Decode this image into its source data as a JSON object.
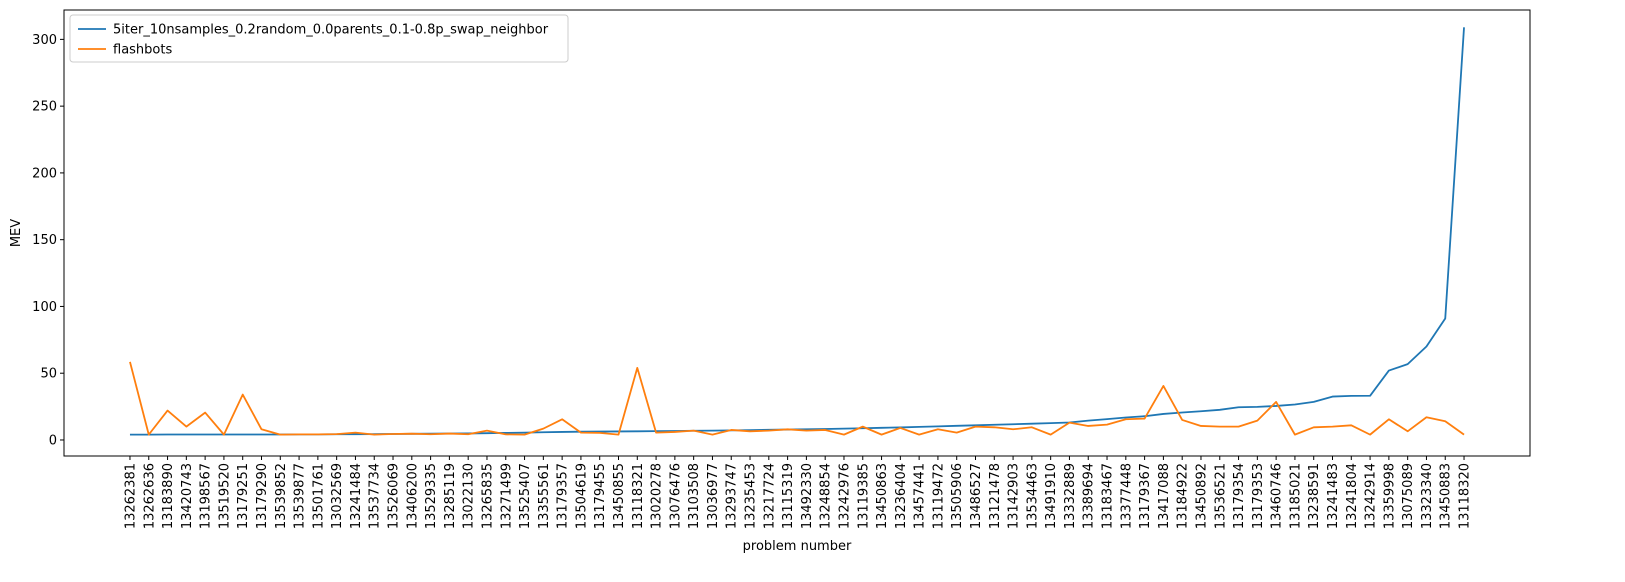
{
  "chart_data": {
    "type": "line",
    "xlabel": "problem number",
    "ylabel": "MEV",
    "ylim": [
      -12,
      322
    ],
    "yticks": [
      0,
      50,
      100,
      150,
      200,
      250,
      300
    ],
    "legend_position": "top-left",
    "categories": [
      "13262381",
      "13262636",
      "13183890",
      "13420743",
      "13198567",
      "13519520",
      "13179251",
      "13179290",
      "13539852",
      "13539877",
      "13501761",
      "13032569",
      "13241484",
      "13537734",
      "13526069",
      "13406200",
      "13529335",
      "13285119",
      "13022130",
      "13265835",
      "13271499",
      "13525407",
      "13355561",
      "13179357",
      "13504619",
      "13179455",
      "13450855",
      "13118321",
      "13020278",
      "13076476",
      "13103508",
      "13036977",
      "13293747",
      "13235453",
      "13217724",
      "13115319",
      "13492330",
      "13248854",
      "13242976",
      "13119385",
      "13450863",
      "13236404",
      "13457441",
      "13119472",
      "13505906",
      "13486527",
      "13121478",
      "13142903",
      "13534463",
      "13491910",
      "13332889",
      "13389694",
      "13183467",
      "13377448",
      "13179367",
      "13417088",
      "13184922",
      "13450892",
      "13536521",
      "13179354",
      "13179353",
      "13460746",
      "13185021",
      "13238591",
      "13241483",
      "13241804",
      "13242914",
      "13359998",
      "13075089",
      "13323340",
      "13450883",
      "13118320"
    ],
    "series": [
      {
        "name": "5iter_10nsamples_0.2random_0.0parents_0.1-0.8p_swap_neighbor",
        "color": "#1f77b4",
        "values": [
          4.0,
          4.0,
          4.1,
          4.1,
          4.1,
          4.1,
          4.1,
          4.1,
          4.1,
          4.2,
          4.2,
          4.3,
          4.3,
          4.4,
          4.5,
          4.6,
          4.7,
          4.8,
          4.9,
          5.1,
          5.3,
          5.5,
          5.8,
          6.0,
          6.2,
          6.3,
          6.4,
          6.5,
          6.6,
          6.7,
          6.9,
          7.0,
          7.2,
          7.4,
          7.6,
          7.8,
          8.0,
          8.2,
          8.5,
          8.8,
          9.1,
          9.4,
          9.8,
          10.2,
          10.6,
          11.0,
          11.4,
          11.8,
          12.2,
          12.6,
          13.1,
          14.5,
          15.6,
          16.8,
          17.8,
          19.5,
          20.6,
          21.5,
          22.6,
          24.5,
          24.8,
          25.5,
          26.6,
          28.5,
          32.5,
          33.0,
          33.1,
          52.0,
          56.8,
          70.0,
          91.0,
          309.0
        ]
      },
      {
        "name": "flashbots",
        "color": "#ff7f0e",
        "values": [
          58.5,
          4.0,
          22.0,
          10.0,
          20.5,
          4.0,
          34.0,
          8.0,
          4.0,
          4.2,
          4.2,
          4.4,
          5.5,
          4.0,
          4.5,
          4.7,
          4.3,
          4.8,
          4.3,
          7.0,
          4.2,
          4.0,
          8.5,
          15.5,
          5.5,
          5.3,
          4.0,
          54.0,
          5.5,
          6.0,
          7.0,
          4.0,
          7.5,
          6.5,
          7.0,
          8.0,
          7.0,
          7.5,
          4.0,
          10.0,
          4.0,
          9.0,
          4.0,
          8.0,
          5.5,
          10.0,
          9.5,
          8.0,
          9.5,
          4.0,
          13.0,
          10.5,
          11.5,
          15.5,
          16.0,
          40.5,
          15.0,
          10.5,
          10.0,
          10.0,
          14.5,
          28.5,
          4.0,
          9.5,
          10.0,
          11.0,
          4.0,
          15.5,
          6.5,
          17.0,
          14.0,
          4.0
        ]
      }
    ]
  }
}
